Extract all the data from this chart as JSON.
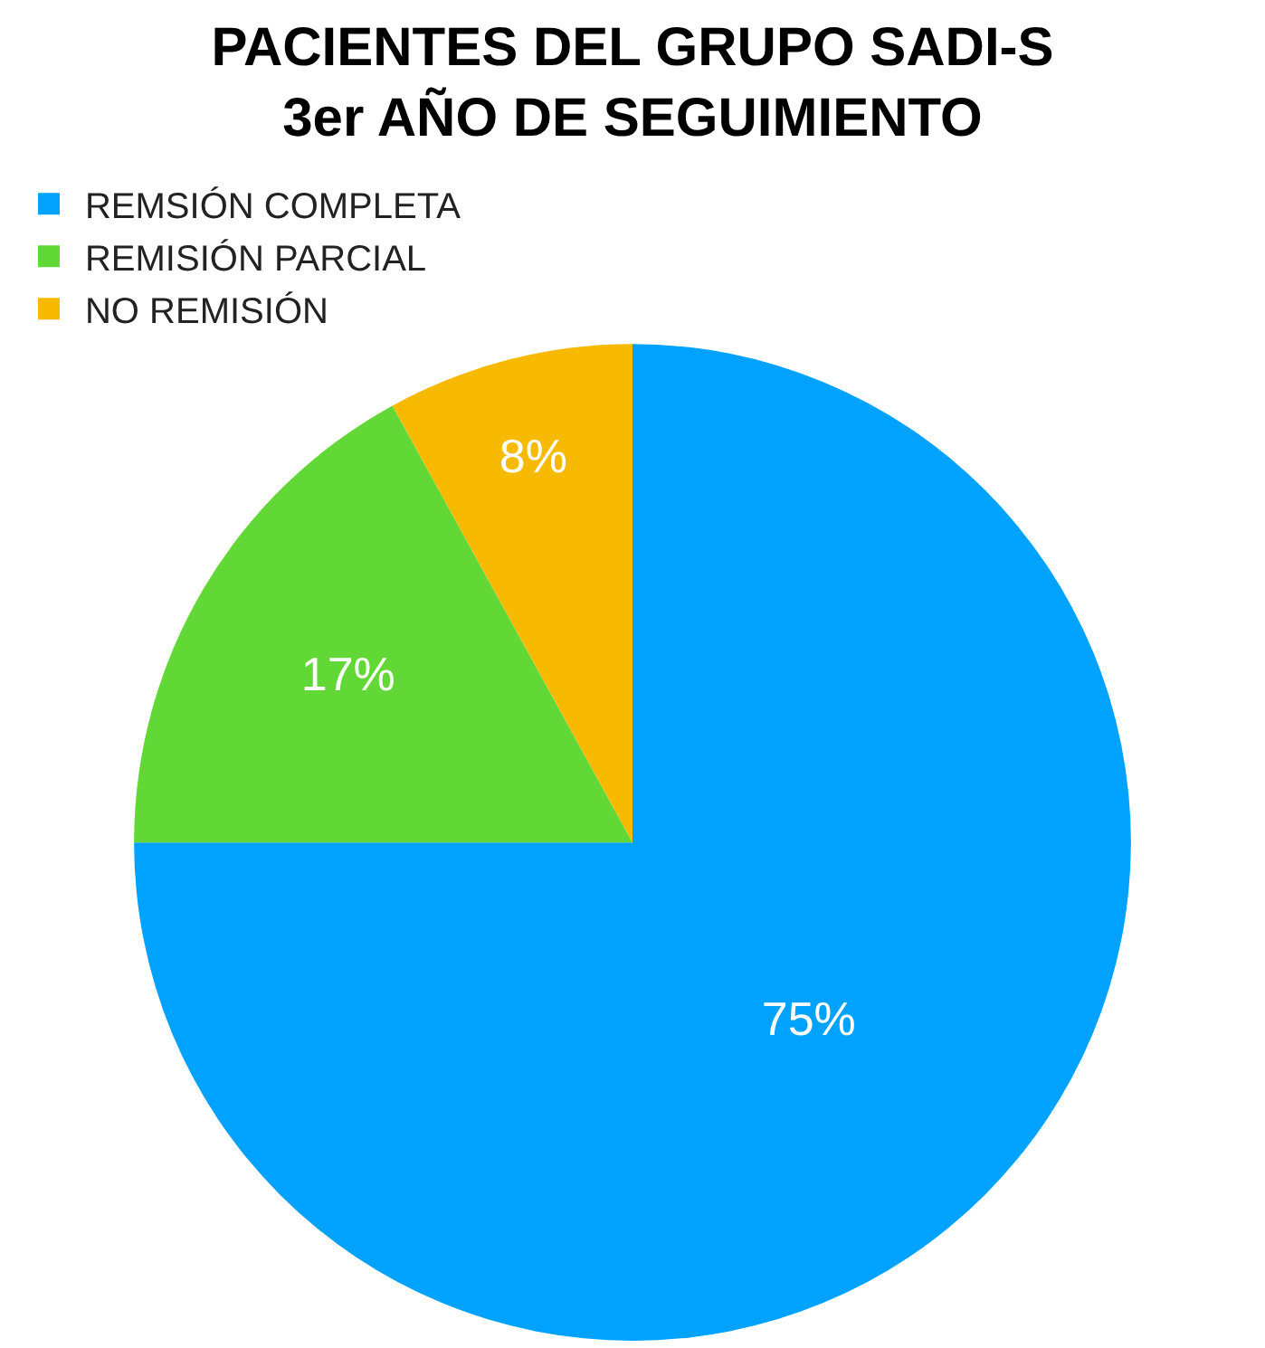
{
  "chart_data": {
    "type": "pie",
    "title": "PACIENTES DEL GRUPO SADI-S\n3er AÑO DE SEGUIMIENTO",
    "categories": [
      "REMSIÓN COMPLETA",
      "REMISIÓN PARCIAL",
      "NO REMISIÓN"
    ],
    "values": [
      75,
      17,
      8
    ],
    "colors": [
      "#00a2ff",
      "#61d836",
      "#f8ba00"
    ],
    "value_labels": [
      "75%",
      "17%",
      "8%"
    ],
    "legend": "top"
  }
}
